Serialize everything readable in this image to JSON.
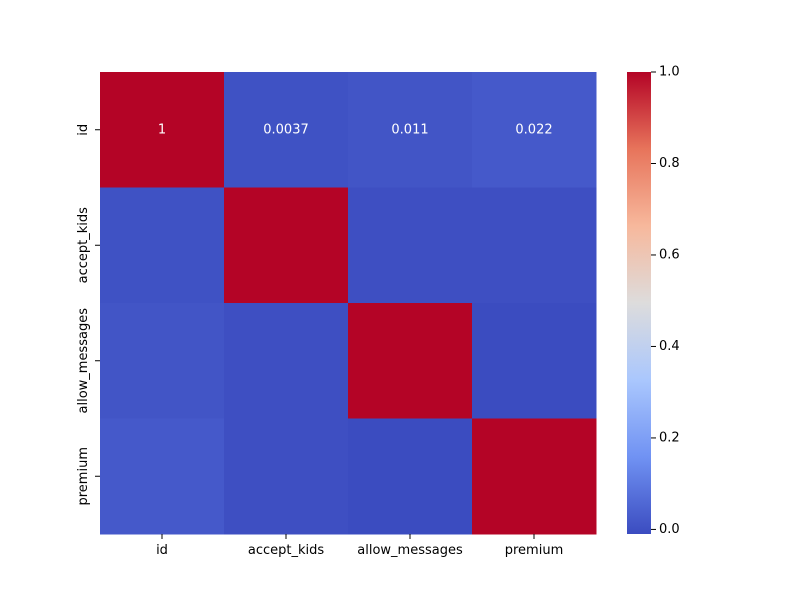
{
  "chart_data": {
    "type": "heatmap",
    "title": "",
    "xlabel": "",
    "ylabel": "",
    "row_labels": [
      "id",
      "accept_kids",
      "allow_messages",
      "premium"
    ],
    "col_labels": [
      "id",
      "accept_kids",
      "allow_messages",
      "premium"
    ],
    "values": [
      [
        1.0,
        0.0037,
        0.011,
        0.022
      ],
      [
        0.0037,
        1.0,
        -0.002,
        -0.002
      ],
      [
        0.011,
        -0.002,
        1.0,
        -0.009
      ],
      [
        0.022,
        -0.002,
        -0.009,
        1.0
      ]
    ],
    "annotations": [
      [
        "1",
        "0.0037",
        "0.011",
        "0.022"
      ],
      [
        "",
        "",
        "",
        ""
      ],
      [
        "",
        "",
        "",
        ""
      ],
      [
        "",
        "",
        "",
        ""
      ]
    ],
    "colormap": "coolwarm",
    "colormap_stops": [
      "#3b4cc0",
      "#7092f3",
      "#aac7fd",
      "#dddcdc",
      "#f7b89c",
      "#e7745b",
      "#b40426"
    ],
    "color_range": [
      -0.01,
      1.0
    ],
    "colorbar": {
      "ticks": [
        0.0,
        0.2,
        0.4,
        0.6,
        0.8,
        1.0
      ],
      "tick_labels": [
        "0.0",
        "0.2",
        "0.4",
        "0.6",
        "0.8",
        "1.0"
      ]
    },
    "grid": false,
    "legend": "colorbar-right"
  }
}
